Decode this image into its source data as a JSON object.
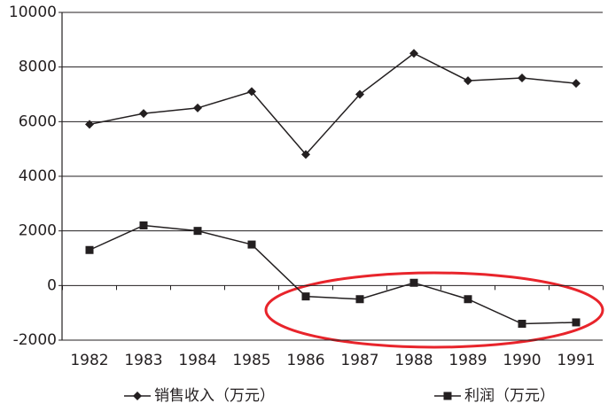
{
  "chart_data": {
    "type": "line",
    "categories": [
      "1982",
      "1983",
      "1984",
      "1985",
      "1986",
      "1987",
      "1988",
      "1989",
      "1990",
      "1991"
    ],
    "series": [
      {
        "name": "销售收入（万元）",
        "color": "#231f20",
        "marker": "diamond",
        "values": [
          5900,
          6300,
          6500,
          7100,
          4800,
          7000,
          8500,
          7500,
          7600,
          7400
        ]
      },
      {
        "name": "利润（万元）",
        "color": "#231f20",
        "marker": "square",
        "values": [
          1300,
          2200,
          2000,
          1500,
          -400,
          -500,
          100,
          -500,
          -1400,
          -1350
        ]
      }
    ],
    "ylim": [
      -2000,
      10000
    ],
    "yticks": [
      -2000,
      0,
      2000,
      4000,
      6000,
      8000,
      10000
    ],
    "grid": true
  }
}
